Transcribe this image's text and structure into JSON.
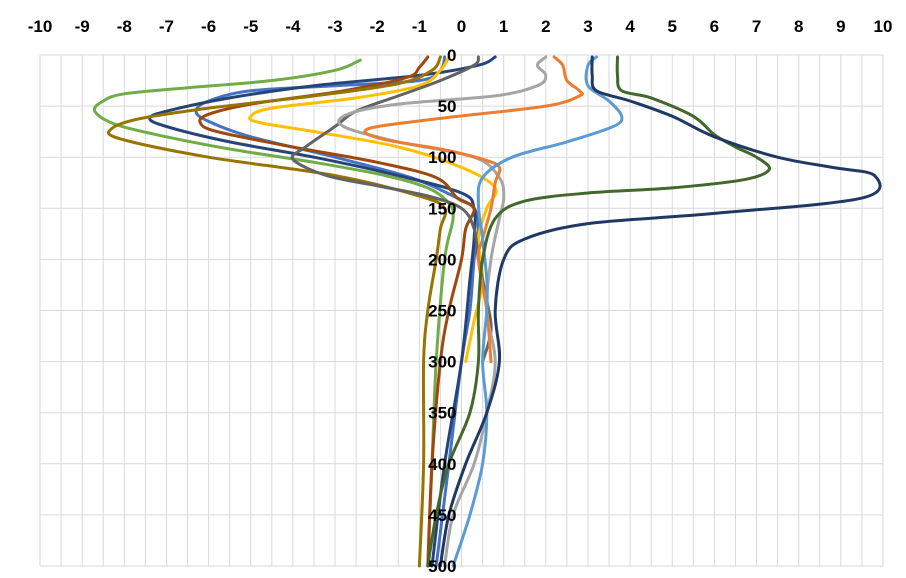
{
  "chart_data": {
    "type": "line",
    "title": "",
    "xlabel": "",
    "ylabel": "",
    "xlim": [
      -10,
      10
    ],
    "ylim": [
      0,
      500
    ],
    "y_inverted": true,
    "x_axis_position": "top",
    "grid": true,
    "x_ticks": [
      "-10",
      "-9",
      "-8",
      "-7",
      "-6",
      "-5",
      "-4",
      "-3",
      "-2",
      "-1",
      "0",
      "1",
      "2",
      "3",
      "4",
      "5",
      "6",
      "7",
      "8",
      "9",
      "10"
    ],
    "y_ticks": [
      "0",
      "50",
      "100",
      "150",
      "200",
      "250",
      "300",
      "350",
      "400",
      "450",
      "500"
    ],
    "series": [
      {
        "color": "#70ad47",
        "points": [
          [
            -2.4,
            5
          ],
          [
            -3,
            15
          ],
          [
            -4.5,
            25
          ],
          [
            -6.5,
            32
          ],
          [
            -8,
            38
          ],
          [
            -8.5,
            45
          ],
          [
            -8.7,
            55
          ],
          [
            -8.2,
            68
          ],
          [
            -7,
            80
          ],
          [
            -5.5,
            92
          ],
          [
            -3.5,
            105
          ],
          [
            -1.8,
            118
          ],
          [
            -0.8,
            130
          ],
          [
            -0.3,
            145
          ],
          [
            -0.2,
            160
          ],
          [
            -0.4,
            200
          ],
          [
            -0.6,
            300
          ],
          [
            -0.7,
            400
          ],
          [
            -0.8,
            500
          ]
        ]
      },
      {
        "color": "#4472c4",
        "points": [
          [
            -0.4,
            2
          ],
          [
            -0.5,
            15
          ],
          [
            -1,
            25
          ],
          [
            -3,
            30
          ],
          [
            -5,
            35
          ],
          [
            -6,
            45
          ],
          [
            -6.3,
            55
          ],
          [
            -6,
            65
          ],
          [
            -5,
            80
          ],
          [
            -3,
            100
          ],
          [
            -1.2,
            120
          ],
          [
            -0.2,
            138
          ],
          [
            0.3,
            150
          ],
          [
            0.4,
            170
          ],
          [
            0.3,
            200
          ],
          [
            0.2,
            250
          ],
          [
            0,
            300
          ],
          [
            -0.3,
            400
          ],
          [
            -0.6,
            500
          ]
        ]
      },
      {
        "color": "#264478",
        "points": [
          [
            0.8,
            2
          ],
          [
            0.4,
            10
          ],
          [
            -1,
            20
          ],
          [
            -3.5,
            30
          ],
          [
            -5.5,
            42
          ],
          [
            -7,
            55
          ],
          [
            -7.4,
            62
          ],
          [
            -7,
            70
          ],
          [
            -5.5,
            85
          ],
          [
            -3.5,
            100
          ],
          [
            -1.5,
            118
          ],
          [
            0,
            135
          ],
          [
            0.3,
            150
          ],
          [
            0.3,
            180
          ],
          [
            0.2,
            220
          ],
          [
            0,
            300
          ],
          [
            -0.4,
            400
          ],
          [
            -0.7,
            500
          ]
        ]
      },
      {
        "color": "#ffc000",
        "points": [
          [
            -0.3,
            2
          ],
          [
            -0.5,
            15
          ],
          [
            -1,
            30
          ],
          [
            -2.5,
            42
          ],
          [
            -4.5,
            52
          ],
          [
            -5,
            60
          ],
          [
            -4.8,
            66
          ],
          [
            -3.5,
            75
          ],
          [
            -1.5,
            90
          ],
          [
            0,
            110
          ],
          [
            0.8,
            130
          ],
          [
            0.6,
            150
          ],
          [
            0.4,
            180
          ],
          [
            0.5,
            220
          ],
          [
            0.3,
            260
          ],
          [
            0.1,
            300
          ]
        ]
      },
      {
        "color": "#9e480e",
        "points": [
          [
            -0.8,
            2
          ],
          [
            -1,
            12
          ],
          [
            -1.3,
            22
          ],
          [
            -2.8,
            35
          ],
          [
            -5,
            48
          ],
          [
            -6,
            58
          ],
          [
            -6.2,
            66
          ],
          [
            -5.8,
            75
          ],
          [
            -4,
            90
          ],
          [
            -2,
            105
          ],
          [
            -0.6,
            120
          ],
          [
            -0.1,
            140
          ],
          [
            0.3,
            150
          ],
          [
            0.1,
            170
          ],
          [
            0,
            200
          ],
          [
            -0.3,
            250
          ],
          [
            -0.5,
            300
          ],
          [
            -0.7,
            400
          ],
          [
            -0.8,
            500
          ]
        ]
      },
      {
        "color": "#997300",
        "points": [
          [
            -0.5,
            2
          ],
          [
            -0.7,
            15
          ],
          [
            -1.5,
            28
          ],
          [
            -3.5,
            40
          ],
          [
            -6,
            52
          ],
          [
            -7.6,
            62
          ],
          [
            -8.3,
            72
          ],
          [
            -8.1,
            82
          ],
          [
            -6,
            100
          ],
          [
            -3,
            118
          ],
          [
            -1,
            138
          ],
          [
            -0.4,
            150
          ],
          [
            -0.5,
            170
          ],
          [
            -0.6,
            200
          ],
          [
            -0.8,
            250
          ],
          [
            -0.9,
            300
          ],
          [
            -0.9,
            400
          ],
          [
            -1,
            500
          ]
        ]
      },
      {
        "color": "#636363",
        "points": [
          [
            0.4,
            2
          ],
          [
            0.3,
            10
          ],
          [
            -0.5,
            25
          ],
          [
            -1.5,
            40
          ],
          [
            -2.5,
            55
          ],
          [
            -3,
            70
          ],
          [
            -3.7,
            90
          ],
          [
            -4,
            102
          ],
          [
            -3.2,
            118
          ],
          [
            -2,
            128
          ],
          [
            -0.8,
            138
          ],
          [
            0,
            150
          ],
          [
            0.3,
            170
          ],
          [
            0.4,
            200
          ],
          [
            0.6,
            240
          ],
          [
            0.7,
            270
          ],
          [
            0.5,
            300
          ]
        ]
      },
      {
        "color": "#a5a5a5",
        "points": [
          [
            2,
            2
          ],
          [
            1.8,
            10
          ],
          [
            2,
            20
          ],
          [
            1.8,
            30
          ],
          [
            0.8,
            40
          ],
          [
            -1.5,
            48
          ],
          [
            -2.7,
            58
          ],
          [
            -2.8,
            70
          ],
          [
            -1.5,
            85
          ],
          [
            0.3,
            100
          ],
          [
            0.9,
            120
          ],
          [
            1,
            140
          ],
          [
            0.9,
            160
          ],
          [
            0.7,
            200
          ],
          [
            0.6,
            250
          ],
          [
            0.8,
            300
          ],
          [
            0.6,
            350
          ],
          [
            0.3,
            400
          ],
          [
            -0.2,
            450
          ],
          [
            -0.4,
            500
          ]
        ]
      },
      {
        "color": "#ed7d31",
        "points": [
          [
            2.2,
            2
          ],
          [
            2.4,
            10
          ],
          [
            2.5,
            25
          ],
          [
            2.8,
            35
          ],
          [
            2.8,
            40
          ],
          [
            2,
            50
          ],
          [
            -0.5,
            62
          ],
          [
            -2.2,
            72
          ],
          [
            -1.9,
            82
          ],
          [
            -0.5,
            92
          ],
          [
            0.5,
            102
          ],
          [
            0.9,
            110
          ],
          [
            0.8,
            125
          ],
          [
            0.7,
            150
          ],
          [
            0.5,
            180
          ],
          [
            0.4,
            200
          ],
          [
            0.6,
            250
          ],
          [
            0.7,
            300
          ]
        ]
      },
      {
        "color": "#5b9bd5",
        "points": [
          [
            3.2,
            2
          ],
          [
            3,
            10
          ],
          [
            3,
            30
          ],
          [
            3.5,
            45
          ],
          [
            3.8,
            60
          ],
          [
            3.6,
            70
          ],
          [
            2.5,
            85
          ],
          [
            1.2,
            100
          ],
          [
            0.5,
            120
          ],
          [
            0.4,
            145
          ],
          [
            0.5,
            180
          ],
          [
            0.6,
            220
          ],
          [
            0.6,
            250
          ],
          [
            0.5,
            300
          ],
          [
            0.6,
            350
          ],
          [
            0.5,
            400
          ],
          [
            0.2,
            450
          ],
          [
            -0.2,
            500
          ]
        ]
      },
      {
        "color": "#43682b",
        "points": [
          [
            3.7,
            2
          ],
          [
            3.7,
            20
          ],
          [
            3.8,
            35
          ],
          [
            4.5,
            42
          ],
          [
            5.5,
            60
          ],
          [
            6,
            78
          ],
          [
            6.5,
            90
          ],
          [
            7,
            100
          ],
          [
            7.3,
            112
          ],
          [
            6.7,
            122
          ],
          [
            5,
            130
          ],
          [
            3,
            135
          ],
          [
            1.5,
            143
          ],
          [
            0.8,
            160
          ],
          [
            0.5,
            200
          ],
          [
            0.4,
            250
          ],
          [
            0.4,
            300
          ],
          [
            0.2,
            350
          ],
          [
            -0.3,
            400
          ],
          [
            -0.6,
            450
          ],
          [
            -0.8,
            500
          ]
        ]
      },
      {
        "color": "#203864",
        "points": [
          [
            3.1,
            2
          ],
          [
            3.1,
            20
          ],
          [
            3.2,
            35
          ],
          [
            4,
            45
          ],
          [
            5,
            60
          ],
          [
            6,
            80
          ],
          [
            7.5,
            100
          ],
          [
            8.8,
            110
          ],
          [
            9.8,
            118
          ],
          [
            9.5,
            140
          ],
          [
            6,
            155
          ],
          [
            3,
            165
          ],
          [
            1.5,
            180
          ],
          [
            1,
            200
          ],
          [
            0.8,
            250
          ],
          [
            0.9,
            300
          ],
          [
            0.6,
            350
          ],
          [
            0.1,
            400
          ],
          [
            -0.3,
            450
          ],
          [
            -0.5,
            500
          ]
        ]
      }
    ]
  }
}
